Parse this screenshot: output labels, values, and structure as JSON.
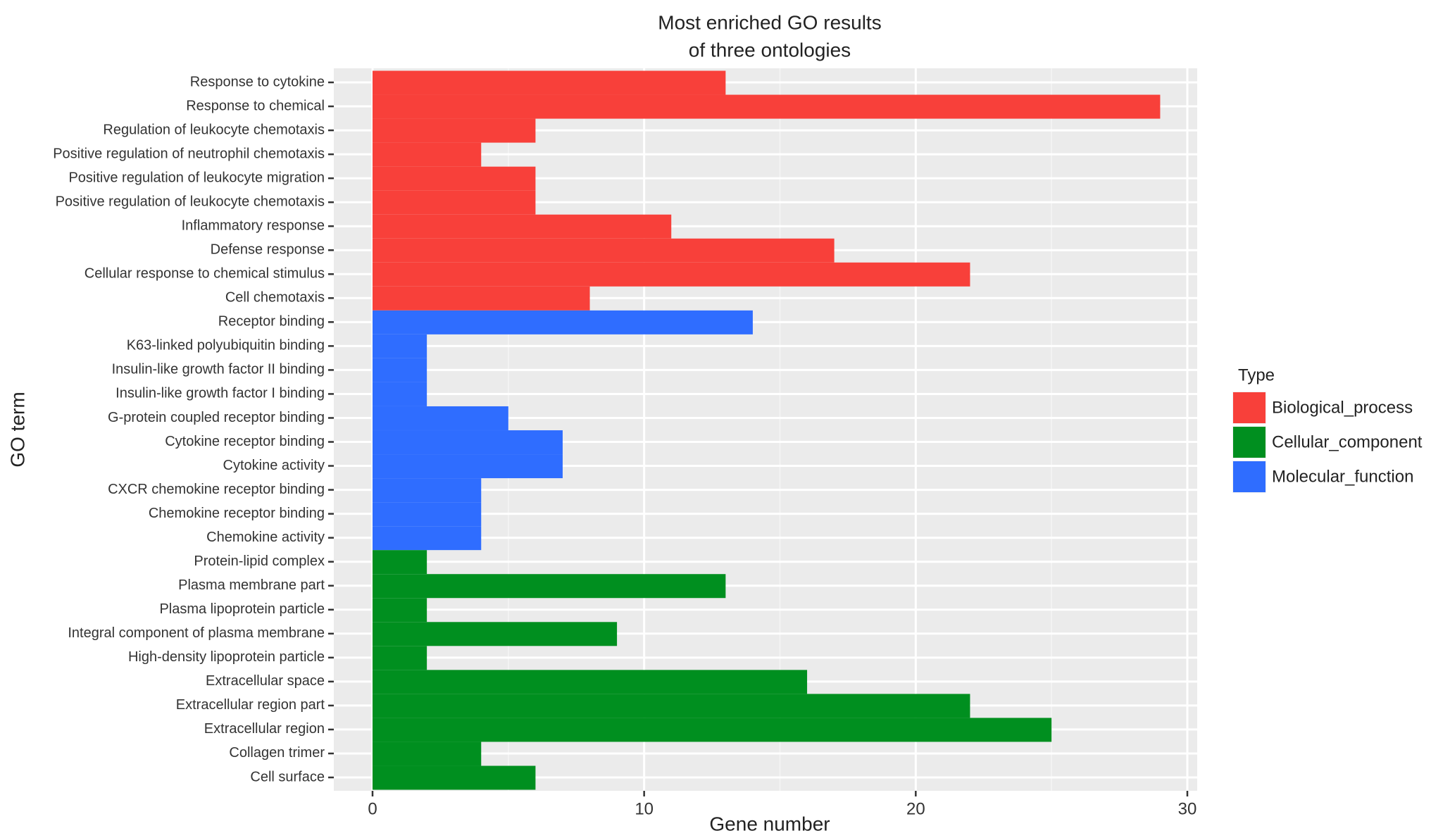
{
  "chart_data": {
    "type": "bar",
    "orientation": "horizontal",
    "title_lines": [
      "Most enriched  GO results",
      "of three ontologies"
    ],
    "xlabel": "Gene number",
    "ylabel": "GO term",
    "xlim": [
      0,
      30
    ],
    "xticks": [
      0,
      10,
      20,
      30
    ],
    "grid": true,
    "legend": {
      "title": "Type",
      "placement": "right",
      "entries": [
        {
          "name": "Biological_process",
          "color": "#F8403A"
        },
        {
          "name": "Cellular_component",
          "color": "#008F1F"
        },
        {
          "name": "Molecular_function",
          "color": "#2F6DFF"
        }
      ]
    },
    "categories": [
      {
        "label": "Response to cytokine",
        "value": 13,
        "type": "Biological_process"
      },
      {
        "label": "Response to chemical",
        "value": 29,
        "type": "Biological_process"
      },
      {
        "label": "Regulation of leukocyte chemotaxis",
        "value": 6,
        "type": "Biological_process"
      },
      {
        "label": "Positive regulation of neutrophil chemotaxis",
        "value": 4,
        "type": "Biological_process"
      },
      {
        "label": "Positive regulation of leukocyte migration",
        "value": 6,
        "type": "Biological_process"
      },
      {
        "label": "Positive regulation of leukocyte chemotaxis",
        "value": 6,
        "type": "Biological_process"
      },
      {
        "label": "Inflammatory response",
        "value": 11,
        "type": "Biological_process"
      },
      {
        "label": "Defense response",
        "value": 17,
        "type": "Biological_process"
      },
      {
        "label": "Cellular response to chemical stimulus",
        "value": 22,
        "type": "Biological_process"
      },
      {
        "label": "Cell chemotaxis",
        "value": 8,
        "type": "Biological_process"
      },
      {
        "label": "Receptor binding",
        "value": 14,
        "type": "Molecular_function"
      },
      {
        "label": "K63-linked polyubiquitin binding",
        "value": 2,
        "type": "Molecular_function"
      },
      {
        "label": "Insulin-like growth factor II binding",
        "value": 2,
        "type": "Molecular_function"
      },
      {
        "label": "Insulin-like growth factor I binding",
        "value": 2,
        "type": "Molecular_function"
      },
      {
        "label": "G-protein coupled receptor binding",
        "value": 5,
        "type": "Molecular_function"
      },
      {
        "label": "Cytokine receptor binding",
        "value": 7,
        "type": "Molecular_function"
      },
      {
        "label": "Cytokine activity",
        "value": 7,
        "type": "Molecular_function"
      },
      {
        "label": "CXCR chemokine receptor binding",
        "value": 4,
        "type": "Molecular_function"
      },
      {
        "label": "Chemokine receptor binding",
        "value": 4,
        "type": "Molecular_function"
      },
      {
        "label": "Chemokine activity",
        "value": 4,
        "type": "Molecular_function"
      },
      {
        "label": "Protein-lipid complex",
        "value": 2,
        "type": "Cellular_component"
      },
      {
        "label": "Plasma membrane part",
        "value": 13,
        "type": "Cellular_component"
      },
      {
        "label": "Plasma lipoprotein particle",
        "value": 2,
        "type": "Cellular_component"
      },
      {
        "label": "Integral component of plasma membrane",
        "value": 9,
        "type": "Cellular_component"
      },
      {
        "label": "High-density lipoprotein particle",
        "value": 2,
        "type": "Cellular_component"
      },
      {
        "label": "Extracellular space",
        "value": 16,
        "type": "Cellular_component"
      },
      {
        "label": "Extracellular region part",
        "value": 22,
        "type": "Cellular_component"
      },
      {
        "label": "Extracellular region",
        "value": 25,
        "type": "Cellular_component"
      },
      {
        "label": "Collagen trimer",
        "value": 4,
        "type": "Cellular_component"
      },
      {
        "label": "Cell surface",
        "value": 6,
        "type": "Cellular_component"
      }
    ]
  }
}
